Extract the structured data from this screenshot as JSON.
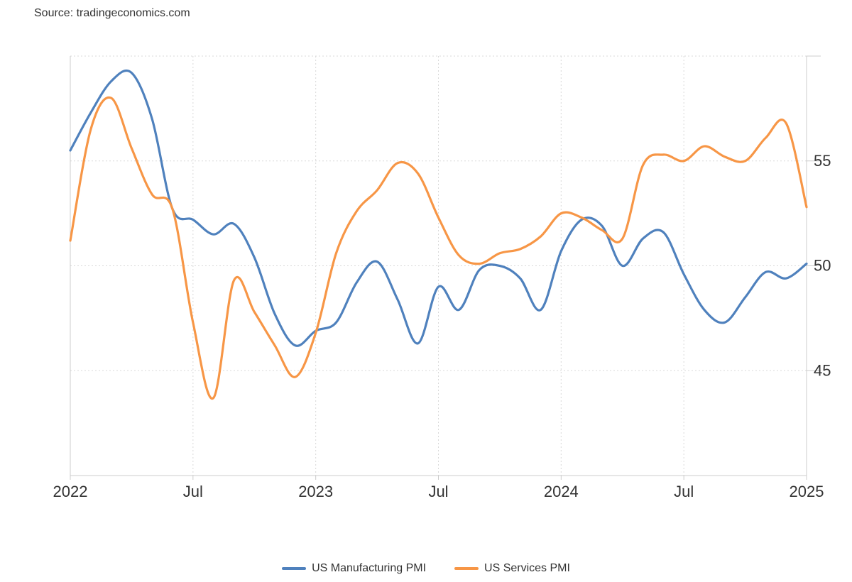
{
  "source_text": "Source: tradingeconomics.com",
  "chart_data": {
    "type": "line",
    "title": "",
    "xlabel": "",
    "ylabel": "",
    "x_tick_labels": [
      {
        "date": "2022-01",
        "label": "2022"
      },
      {
        "date": "2022-07",
        "label": "Jul"
      },
      {
        "date": "2023-01",
        "label": "2023"
      },
      {
        "date": "2023-07",
        "label": "Jul"
      },
      {
        "date": "2024-01",
        "label": "2024"
      },
      {
        "date": "2024-07",
        "label": "Jul"
      },
      {
        "date": "2025-01",
        "label": "2025"
      }
    ],
    "y_ticks": [
      45,
      50,
      55
    ],
    "ylim": [
      40,
      60
    ],
    "xlim": [
      "2022-01",
      "2025-01"
    ],
    "grid": true,
    "legend_position": "bottom-center",
    "x": [
      "2022-01",
      "2022-02",
      "2022-03",
      "2022-04",
      "2022-05",
      "2022-06",
      "2022-07",
      "2022-08",
      "2022-09",
      "2022-10",
      "2022-11",
      "2022-12",
      "2023-01",
      "2023-02",
      "2023-03",
      "2023-04",
      "2023-05",
      "2023-06",
      "2023-07",
      "2023-08",
      "2023-09",
      "2023-10",
      "2023-11",
      "2023-12",
      "2024-01",
      "2024-02",
      "2024-03",
      "2024-04",
      "2024-05",
      "2024-06",
      "2024-07",
      "2024-08",
      "2024-09",
      "2024-10",
      "2024-11",
      "2024-12",
      "2025-01"
    ],
    "series": [
      {
        "name": "US Manufacturing PMI",
        "color": "#4f81bd",
        "values": [
          55.5,
          57.3,
          58.8,
          59.2,
          57.0,
          52.7,
          52.2,
          51.5,
          52.0,
          50.4,
          47.7,
          46.2,
          46.9,
          47.3,
          49.2,
          50.2,
          48.4,
          46.3,
          49.0,
          47.9,
          49.8,
          50.0,
          49.4,
          47.9,
          50.7,
          52.2,
          51.9,
          50.0,
          51.3,
          51.6,
          49.6,
          47.9,
          47.3,
          48.5,
          49.7,
          49.4,
          50.1
        ]
      },
      {
        "name": "US Services PMI",
        "color": "#f79646",
        "values": [
          51.2,
          56.5,
          58.0,
          55.6,
          53.4,
          52.7,
          47.3,
          43.7,
          49.3,
          47.8,
          46.2,
          44.7,
          46.8,
          50.6,
          52.6,
          53.6,
          54.9,
          54.4,
          52.3,
          50.5,
          50.1,
          50.6,
          50.8,
          51.4,
          52.5,
          52.3,
          51.7,
          51.3,
          54.8,
          55.3,
          55.0,
          55.7,
          55.2,
          55.0,
          56.1,
          56.8,
          52.8
        ]
      }
    ]
  }
}
